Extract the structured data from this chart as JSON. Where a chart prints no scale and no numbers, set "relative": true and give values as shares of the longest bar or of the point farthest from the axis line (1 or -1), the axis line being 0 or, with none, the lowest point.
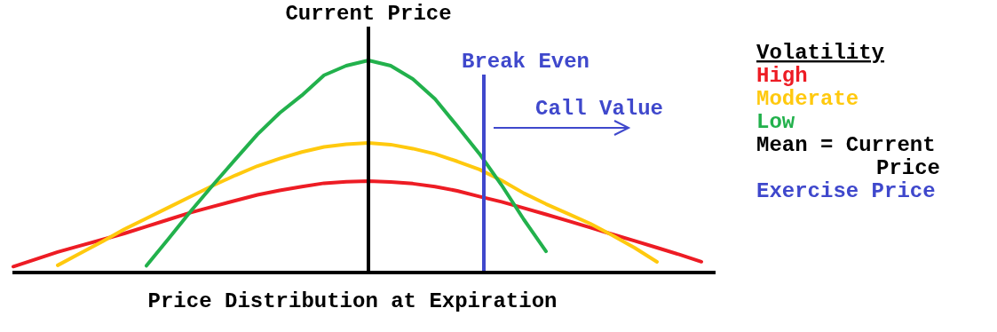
{
  "chart_data": {
    "type": "line",
    "relative": true,
    "xlabel": "Price Distribution at Expiration",
    "legend_title": "Volatility",
    "tick_labels": false,
    "categories": [
      null,
      null,
      null,
      null,
      null,
      null,
      null,
      null,
      null,
      null,
      null,
      null,
      null,
      null,
      null,
      null,
      null,
      null,
      null,
      null,
      null,
      null,
      null,
      null,
      null,
      null,
      null,
      null,
      null,
      null,
      null,
      null
    ],
    "series": [
      {
        "name": "High",
        "color": "#ed1c24",
        "values": [
          0.028,
          0.062,
          0.097,
          0.126,
          0.155,
          0.184,
          0.217,
          0.25,
          0.283,
          0.311,
          0.339,
          0.366,
          0.387,
          0.405,
          0.421,
          0.428,
          0.431,
          0.427,
          0.419,
          0.405,
          0.385,
          0.358,
          0.333,
          0.304,
          0.274,
          0.243,
          0.212,
          0.18,
          0.149,
          0.117,
          0.085,
          0.051
        ]
      },
      {
        "name": "Moderate",
        "color": "#ffc90e",
        "values": [
          null,
          null,
          0.034,
          0.09,
          0.145,
          0.204,
          0.255,
          0.307,
          0.359,
          0.41,
          0.458,
          0.502,
          0.537,
          0.568,
          0.592,
          0.605,
          0.611,
          0.603,
          0.584,
          0.559,
          0.524,
          0.486,
          0.434,
          0.374,
          0.323,
          0.277,
          0.23,
          0.175,
          0.116,
          0.05,
          null,
          null
        ]
      },
      {
        "name": "Low",
        "color": "#22b14c",
        "values": [
          null,
          null,
          null,
          null,
          null,
          null,
          0.032,
          0.16,
          0.29,
          0.413,
          0.533,
          0.651,
          0.752,
          0.835,
          0.93,
          0.975,
          1,
          0.975,
          0.912,
          0.818,
          0.69,
          0.56,
          0.412,
          0.25,
          0.1,
          null,
          null,
          null,
          null,
          null,
          null,
          null
        ]
      }
    ],
    "annotations": [
      "Current Price",
      "Break Even",
      "Call Value",
      "Mean = Current Price",
      "Exercise Price"
    ]
  }
}
